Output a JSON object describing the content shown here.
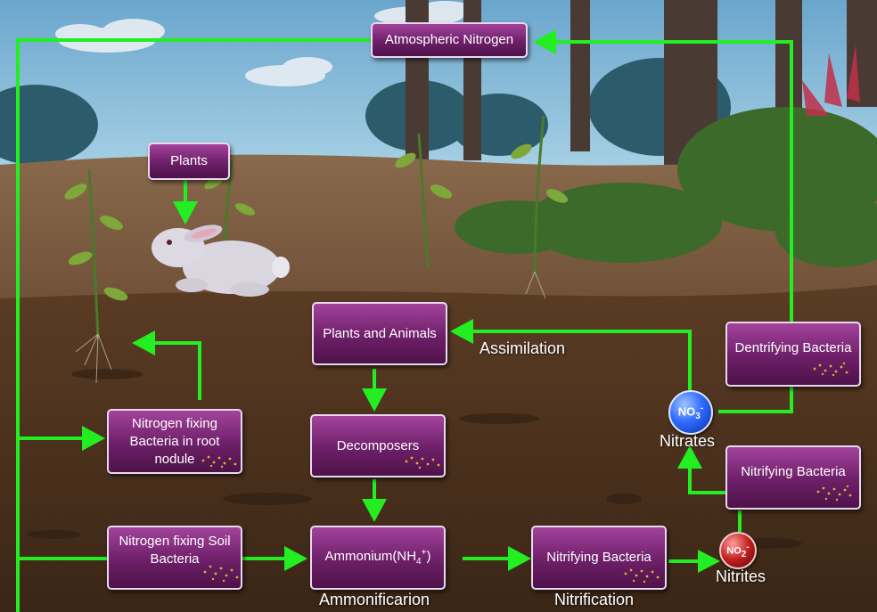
{
  "boxes": {
    "atmospheric_nitrogen": "Atmospheric Nitrogen",
    "plants": "Plants",
    "plants_and_animals": "Plants and Animals",
    "dentrifying_bacteria": "Dentrifying Bacteria",
    "nitrogen_fixing_root": "Nitrogen fixing Bacteria in root nodule",
    "decomposers": "Decomposers",
    "nitrifying_bacteria_right": "Nitrifying Bacteria",
    "nitrogen_fixing_soil": "Nitrogen fixing Soil Bacteria",
    "ammonium": "Ammonium(NH",
    "ammonium_sub": "4",
    "ammonium_sup": "+",
    "ammonium_close": ")",
    "nitrifying_bacteria_bottom": "Nitrifying Bacteria"
  },
  "labels": {
    "assimilation": "Assimilation",
    "nitrates": "Nitrates",
    "nitrites": "Nitrites",
    "ammonification": "Ammonificarion",
    "nitrification": "Nitrification"
  },
  "ions": {
    "nitrate": "NO",
    "nitrate_sub": "3",
    "nitrate_sup": "-",
    "nitrite": "NO",
    "nitrite_sub": "2",
    "nitrite_sup": "-"
  },
  "colors": {
    "arrow": "#22ee22",
    "box_fill": "#7a2574",
    "sky": "#7eb6d6",
    "soil": "#4a3220"
  }
}
